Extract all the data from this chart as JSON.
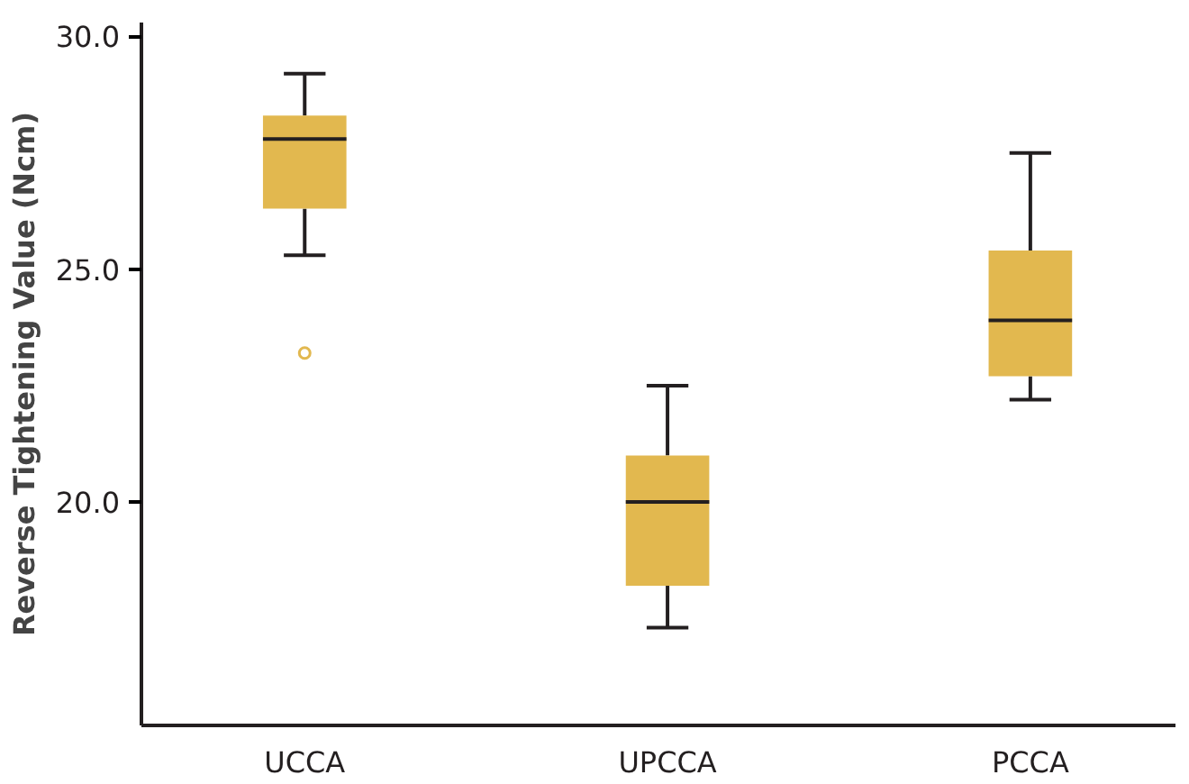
{
  "chart_data": {
    "type": "box",
    "ylabel": "Reverse Tightening Value (Ncm)",
    "categories": [
      "UCCA",
      "UPCCA",
      "PCCA"
    ],
    "color": "#e2b84f",
    "ylim": [
      15.2,
      30.3
    ],
    "yticks": [
      {
        "value": 20,
        "label": "20.0"
      },
      {
        "value": 25,
        "label": "25.0"
      },
      {
        "value": 30,
        "label": "30.0"
      }
    ],
    "grid": false,
    "boxes": [
      {
        "low": 25.3,
        "q1": 26.3,
        "median": 27.8,
        "q3": 28.3,
        "high": 29.2,
        "outliers": [
          23.2
        ]
      },
      {
        "low": 17.3,
        "q1": 18.2,
        "median": 20.0,
        "q3": 21.0,
        "high": 22.5
      },
      {
        "low": 22.2,
        "q1": 22.7,
        "median": 23.9,
        "q3": 25.4,
        "high": 27.5
      }
    ]
  }
}
